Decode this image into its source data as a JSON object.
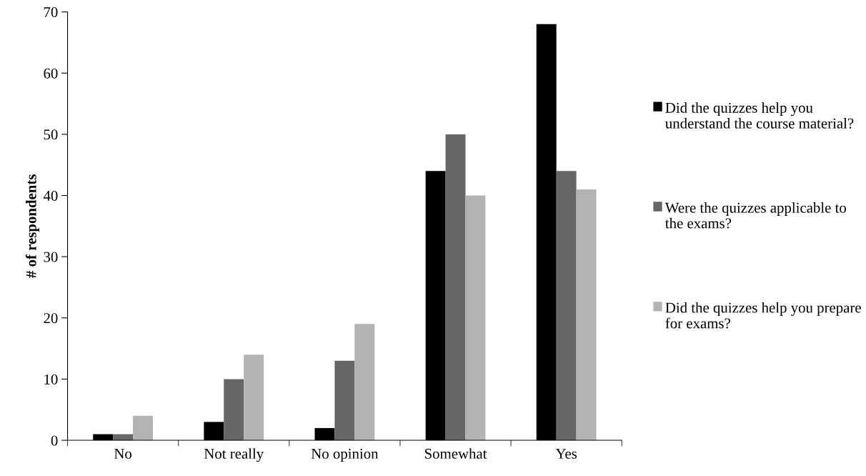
{
  "chart_data": {
    "type": "bar",
    "ylabel": "# of respondents",
    "categories": [
      "No",
      "Not really",
      "No opinion",
      "Somewhat",
      "Yes"
    ],
    "series": [
      {
        "name": "Did the quizzes help you understand the course material?",
        "color": "#000000",
        "values": [
          1,
          3,
          2,
          44,
          68
        ]
      },
      {
        "name": "Were the quizzes applicable to the exams?",
        "color": "#666666",
        "values": [
          1,
          10,
          13,
          50,
          44
        ]
      },
      {
        "name": "Did the quizzes help you prepare for exams?",
        "color": "#b3b3b3",
        "values": [
          4,
          14,
          19,
          40,
          41
        ]
      }
    ],
    "ylim": [
      0,
      70
    ],
    "yticks": [
      0,
      10,
      20,
      30,
      40,
      50,
      60,
      70
    ],
    "grid": false,
    "legend": "right"
  }
}
